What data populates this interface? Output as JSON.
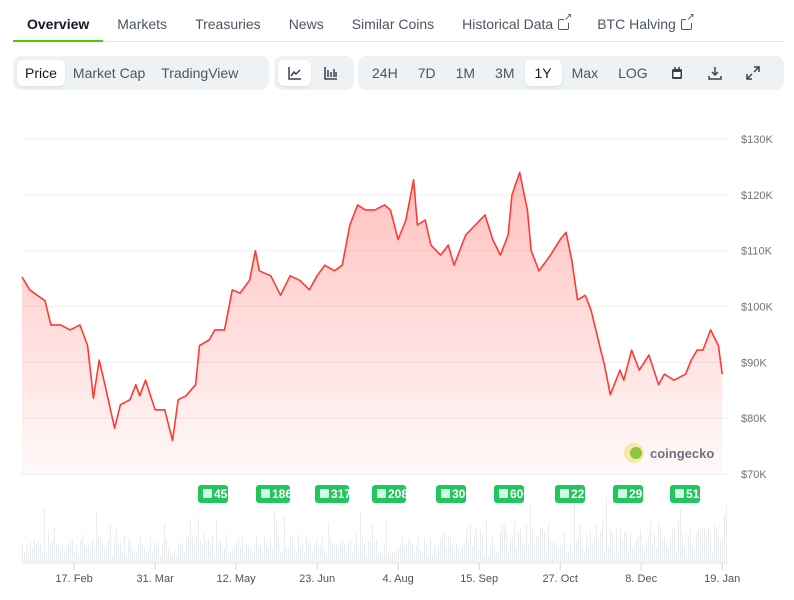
{
  "tabs": [
    {
      "label": "Overview",
      "active": true
    },
    {
      "label": "Markets"
    },
    {
      "label": "Treasuries"
    },
    {
      "label": "News"
    },
    {
      "label": "Similar Coins"
    },
    {
      "label": "Historical Data",
      "external": true
    },
    {
      "label": "BTC Halving",
      "external": true
    }
  ],
  "chart_types": [
    {
      "label": "Price",
      "active": true
    },
    {
      "label": "Market Cap"
    },
    {
      "label": "TradingView"
    }
  ],
  "view_icons": [
    "line-chart-icon",
    "ohlc-chart-icon"
  ],
  "ranges": [
    {
      "label": "24H"
    },
    {
      "label": "7D"
    },
    {
      "label": "1M"
    },
    {
      "label": "3M"
    },
    {
      "label": "1Y",
      "active": true
    },
    {
      "label": "Max"
    },
    {
      "label": "LOG"
    }
  ],
  "tool_icons": [
    "calendar-icon",
    "download-icon",
    "expand-icon"
  ],
  "watermark": "coingecko",
  "news_counts": [
    "45",
    "186",
    "317",
    "208",
    "30",
    "60",
    "22",
    "29",
    "51"
  ],
  "colors": {
    "line": "#ff3a33",
    "news": "#22c55e",
    "accent": "#4bcc00"
  },
  "chart_data": {
    "type": "area",
    "ylim": [
      70000,
      130000
    ],
    "y_ticks": [
      "$70K",
      "$80K",
      "$90K",
      "$100K",
      "$110K",
      "$120K",
      "$130K"
    ],
    "x_ticks": [
      "17. Feb",
      "31. Mar",
      "12. May",
      "23. Jun",
      "4. Aug",
      "15. Sep",
      "27. Oct",
      "8. Dec",
      "19. Jan"
    ],
    "x_tick_dates": [
      "2025-02-17",
      "2025-03-31",
      "2025-05-12",
      "2025-06-23",
      "2025-08-04",
      "2025-09-15",
      "2025-10-27",
      "2025-12-08",
      "2026-01-19"
    ],
    "xlim": [
      "2025-01-21",
      "2026-01-22"
    ],
    "grid": true,
    "points": [
      [
        "2025-01-21",
        105300
      ],
      [
        "2025-01-25",
        103000
      ],
      [
        "2025-02-02",
        101000
      ],
      [
        "2025-02-05",
        96700
      ],
      [
        "2025-02-10",
        96700
      ],
      [
        "2025-02-15",
        95800
      ],
      [
        "2025-02-20",
        96700
      ],
      [
        "2025-02-24",
        93000
      ],
      [
        "2025-02-27",
        83600
      ],
      [
        "2025-03-02",
        90400
      ],
      [
        "2025-03-05",
        86000
      ],
      [
        "2025-03-10",
        78200
      ],
      [
        "2025-03-13",
        82400
      ],
      [
        "2025-03-18",
        83300
      ],
      [
        "2025-03-21",
        86000
      ],
      [
        "2025-03-23",
        84000
      ],
      [
        "2025-03-26",
        86800
      ],
      [
        "2025-03-31",
        81500
      ],
      [
        "2025-04-05",
        81500
      ],
      [
        "2025-04-09",
        76000
      ],
      [
        "2025-04-12",
        83300
      ],
      [
        "2025-04-16",
        84000
      ],
      [
        "2025-04-21",
        86000
      ],
      [
        "2025-04-23",
        93000
      ],
      [
        "2025-04-28",
        94000
      ],
      [
        "2025-05-01",
        95800
      ],
      [
        "2025-05-06",
        95800
      ],
      [
        "2025-05-10",
        103000
      ],
      [
        "2025-05-14",
        102400
      ],
      [
        "2025-05-19",
        104700
      ],
      [
        "2025-05-22",
        110000
      ],
      [
        "2025-05-24",
        106400
      ],
      [
        "2025-05-30",
        105500
      ],
      [
        "2025-06-04",
        102000
      ],
      [
        "2025-06-09",
        105500
      ],
      [
        "2025-06-14",
        104700
      ],
      [
        "2025-06-19",
        103000
      ],
      [
        "2025-06-23",
        105500
      ],
      [
        "2025-06-27",
        107400
      ],
      [
        "2025-07-02",
        106400
      ],
      [
        "2025-07-06",
        107400
      ],
      [
        "2025-07-10",
        114600
      ],
      [
        "2025-07-14",
        118200
      ],
      [
        "2025-07-18",
        117300
      ],
      [
        "2025-07-23",
        117300
      ],
      [
        "2025-07-28",
        118200
      ],
      [
        "2025-07-31",
        117300
      ],
      [
        "2025-08-04",
        112000
      ],
      [
        "2025-08-08",
        115500
      ],
      [
        "2025-08-12",
        122700
      ],
      [
        "2025-08-14",
        114600
      ],
      [
        "2025-08-18",
        115500
      ],
      [
        "2025-08-21",
        111000
      ],
      [
        "2025-08-26",
        109200
      ],
      [
        "2025-08-30",
        111000
      ],
      [
        "2025-09-02",
        107400
      ],
      [
        "2025-09-08",
        112800
      ],
      [
        "2025-09-13",
        114600
      ],
      [
        "2025-09-18",
        116400
      ],
      [
        "2025-09-22",
        112000
      ],
      [
        "2025-09-26",
        109200
      ],
      [
        "2025-09-30",
        112800
      ],
      [
        "2025-10-02",
        120000
      ],
      [
        "2025-10-06",
        124000
      ],
      [
        "2025-10-10",
        117300
      ],
      [
        "2025-10-12",
        110000
      ],
      [
        "2025-10-16",
        106400
      ],
      [
        "2025-10-22",
        109200
      ],
      [
        "2025-10-27",
        112000
      ],
      [
        "2025-10-30",
        113300
      ],
      [
        "2025-11-02",
        108300
      ],
      [
        "2025-11-05",
        101200
      ],
      [
        "2025-11-09",
        102000
      ],
      [
        "2025-11-12",
        99400
      ],
      [
        "2025-11-17",
        92200
      ],
      [
        "2025-11-19",
        89500
      ],
      [
        "2025-11-22",
        84200
      ],
      [
        "2025-11-27",
        88600
      ],
      [
        "2025-11-29",
        86800
      ],
      [
        "2025-12-03",
        92200
      ],
      [
        "2025-12-07",
        88600
      ],
      [
        "2025-12-12",
        91300
      ],
      [
        "2025-12-17",
        86000
      ],
      [
        "2025-12-20",
        87900
      ],
      [
        "2025-12-25",
        86800
      ],
      [
        "2025-12-31",
        87900
      ],
      [
        "2026-01-03",
        90400
      ],
      [
        "2026-01-06",
        92200
      ],
      [
        "2026-01-09",
        92200
      ],
      [
        "2026-01-13",
        95800
      ],
      [
        "2026-01-17",
        93000
      ],
      [
        "2026-01-19",
        87900
      ]
    ]
  }
}
